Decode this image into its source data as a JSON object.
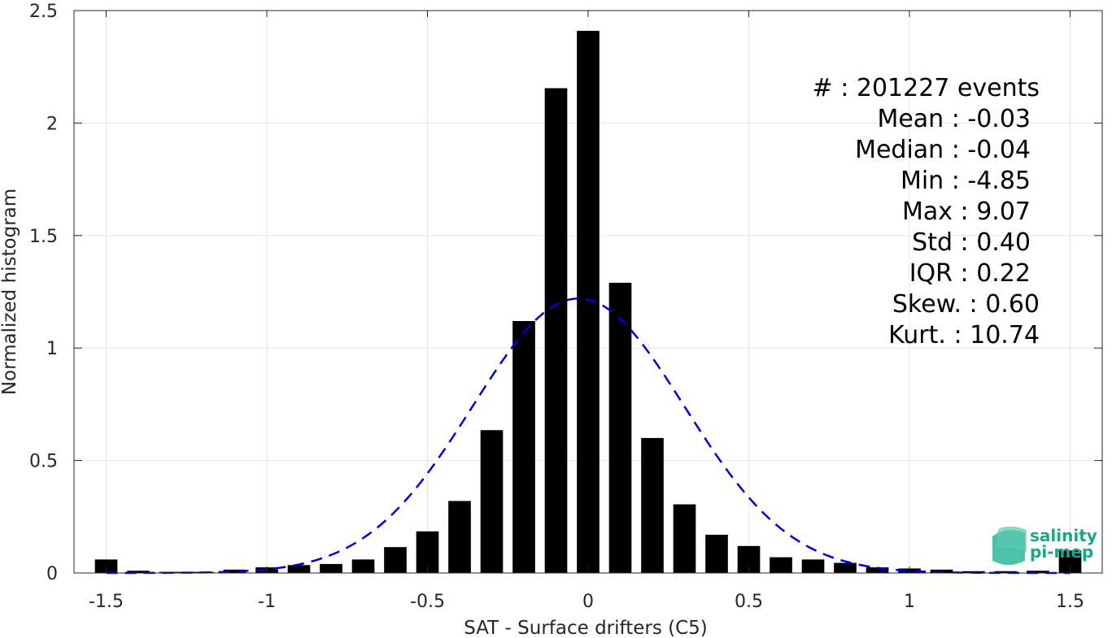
{
  "chart_data": {
    "type": "bar",
    "xlabel": "SAT - Surface drifters (C5)",
    "ylabel": "Normalized histogram",
    "xlim": [
      -1.6,
      1.6
    ],
    "ylim": [
      0,
      2.5
    ],
    "xticks": [
      "-1.5",
      "-1",
      "-0.5",
      "0",
      "0.5",
      "1",
      "1.5"
    ],
    "yticks": [
      "0",
      "0.5",
      "1",
      "1.5",
      "2",
      "2.5"
    ],
    "grid": true,
    "bin_width": 0.1,
    "x": [
      -1.5,
      -1.4,
      -1.3,
      -1.2,
      -1.1,
      -1.0,
      -0.9,
      -0.8,
      -0.7,
      -0.6,
      -0.5,
      -0.4,
      -0.3,
      -0.2,
      -0.1,
      0.0,
      0.1,
      0.2,
      0.3,
      0.4,
      0.5,
      0.6,
      0.7,
      0.8,
      0.9,
      1.0,
      1.1,
      1.2,
      1.3,
      1.4,
      1.5
    ],
    "values": [
      0.06,
      0.01,
      0.005,
      0.005,
      0.015,
      0.025,
      0.035,
      0.04,
      0.06,
      0.115,
      0.185,
      0.32,
      0.635,
      1.12,
      2.155,
      2.41,
      1.29,
      0.6,
      0.305,
      0.17,
      0.12,
      0.07,
      0.06,
      0.045,
      0.025,
      0.02,
      0.015,
      0.008,
      0.008,
      0.01,
      0.1
    ],
    "bar_color": "#000000",
    "fit": {
      "type": "gaussian",
      "mean": -0.03,
      "std": 0.33,
      "peak": 1.22,
      "color": "#0000dd",
      "style": "dashed"
    },
    "stats": {
      "events_line": "#  : 201227 events",
      "lines": [
        "Mean : -0.03",
        "Median : -0.04",
        "Min : -4.85",
        "Max : 9.07",
        "Std : 0.40",
        "IQR : 0.22",
        "Skew. : 0.60",
        "Kurt. : 10.74"
      ]
    }
  },
  "logo": {
    "line1": "salinity",
    "line2": "pi-mep",
    "color": "#17a88c"
  }
}
